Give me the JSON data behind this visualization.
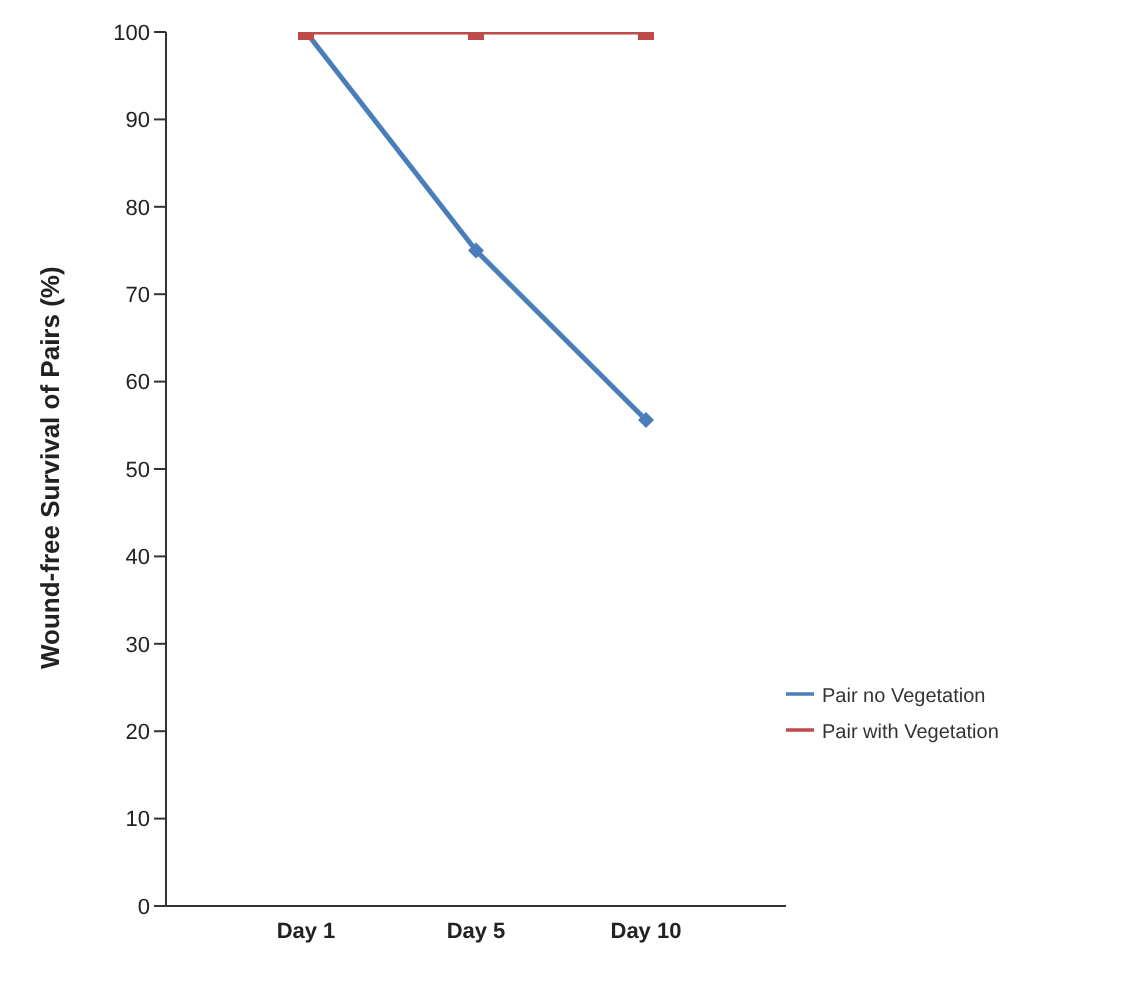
{
  "chart_data": {
    "type": "line",
    "ylabel": "Wound-free Survival of Pairs (%)",
    "categories": [
      "Day 1",
      "Day 5",
      "Day 10"
    ],
    "series": [
      {
        "name": "Pair no Vegetation",
        "color": "#4a7ebb",
        "values": [
          100,
          75,
          55.6
        ],
        "marker": "diamond"
      },
      {
        "name": "Pair with Vegetation",
        "color": "#be4b48",
        "values": [
          100,
          100,
          100
        ],
        "marker": "square"
      }
    ],
    "ylim": [
      0,
      100
    ],
    "yticks": [
      0,
      10,
      20,
      30,
      40,
      50,
      60,
      70,
      80,
      90,
      100
    ],
    "grid": false,
    "legend": "right"
  }
}
